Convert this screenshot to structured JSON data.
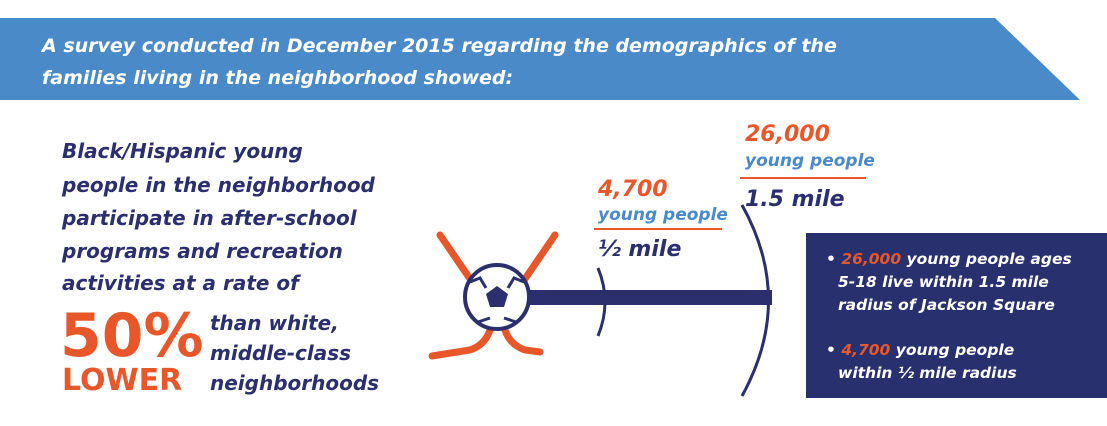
{
  "banner": {
    "lines": [
      "A survey conducted in December 2015 regarding the demographics of the",
      "families living in the neighborhood showed:"
    ]
  },
  "statement": {
    "lines": [
      "Black/Hispanic young",
      "people in the neighborhood",
      "participate in after-school",
      "programs and recreation",
      "activities at a rate of"
    ],
    "figure": "50%",
    "figure_word": "LOWER",
    "comparison": [
      "than white,",
      "middle-class",
      "neighborhoods"
    ]
  },
  "near_radius": {
    "count": "4,700",
    "label": "young people",
    "distance": "½ mile"
  },
  "far_radius": {
    "count": "26,000",
    "label": "young people",
    "distance": "1.5 mile"
  },
  "bullets": [
    {
      "highlight": "26,000",
      "lines": [
        "young people ages",
        "5-18 live within 1.5 mile",
        "radius of Jackson Square"
      ]
    },
    {
      "highlight": "4,700",
      "lines": [
        "young people",
        "within ½ mile radius"
      ]
    }
  ]
}
